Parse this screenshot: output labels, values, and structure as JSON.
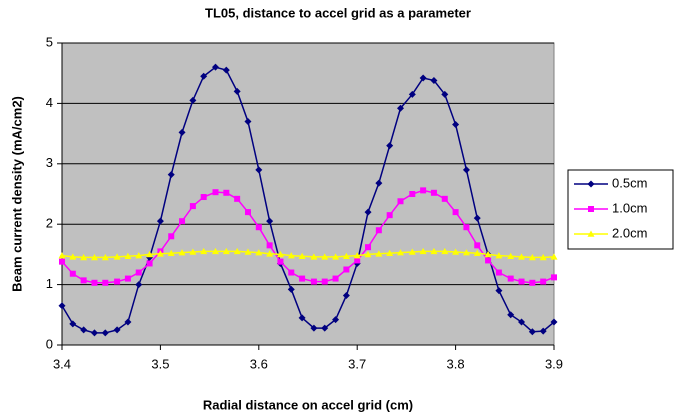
{
  "chart_data": {
    "type": "line",
    "title": "TL05, distance to accel grid as a parameter",
    "x_label": "Radial distance on accel grid (cm)",
    "y_label": "Beam current density (mA/cm2)",
    "x": [
      3.4,
      3.411,
      3.422,
      3.433,
      3.444,
      3.456,
      3.467,
      3.478,
      3.489,
      3.5,
      3.511,
      3.522,
      3.533,
      3.544,
      3.556,
      3.567,
      3.578,
      3.589,
      3.6,
      3.611,
      3.622,
      3.633,
      3.644,
      3.656,
      3.667,
      3.678,
      3.689,
      3.7,
      3.711,
      3.722,
      3.733,
      3.744,
      3.756,
      3.767,
      3.778,
      3.789,
      3.8,
      3.811,
      3.822,
      3.833,
      3.844,
      3.856,
      3.867,
      3.878,
      3.889,
      3.9
    ],
    "series": [
      {
        "name": "0.5cm",
        "color": "#000080",
        "marker": "diamond",
        "values": [
          0.65,
          0.35,
          0.25,
          0.2,
          0.2,
          0.25,
          0.38,
          1.0,
          1.45,
          2.05,
          2.82,
          3.52,
          4.05,
          4.45,
          4.6,
          4.55,
          4.2,
          3.7,
          2.9,
          2.05,
          1.35,
          0.92,
          0.45,
          0.28,
          0.28,
          0.42,
          0.82,
          1.35,
          2.2,
          2.68,
          3.3,
          3.92,
          4.15,
          4.42,
          4.38,
          4.15,
          3.65,
          2.9,
          2.1,
          1.5,
          0.9,
          0.5,
          0.38,
          0.22,
          0.23,
          0.38
        ]
      },
      {
        "name": "1.0cm",
        "color": "#ff00ff",
        "marker": "square",
        "values": [
          1.38,
          1.18,
          1.07,
          1.03,
          1.03,
          1.05,
          1.1,
          1.2,
          1.35,
          1.55,
          1.8,
          2.05,
          2.3,
          2.45,
          2.53,
          2.52,
          2.42,
          2.2,
          1.95,
          1.65,
          1.38,
          1.2,
          1.1,
          1.05,
          1.05,
          1.1,
          1.25,
          1.4,
          1.62,
          1.9,
          2.15,
          2.38,
          2.5,
          2.56,
          2.52,
          2.42,
          2.2,
          1.95,
          1.65,
          1.4,
          1.2,
          1.1,
          1.05,
          1.03,
          1.05,
          1.12
        ]
      },
      {
        "name": "2.0cm",
        "color": "#ffff00",
        "marker": "triangle",
        "values": [
          1.48,
          1.46,
          1.45,
          1.45,
          1.45,
          1.46,
          1.47,
          1.48,
          1.5,
          1.51,
          1.52,
          1.53,
          1.54,
          1.55,
          1.55,
          1.55,
          1.55,
          1.54,
          1.53,
          1.51,
          1.5,
          1.48,
          1.47,
          1.46,
          1.46,
          1.46,
          1.47,
          1.48,
          1.5,
          1.51,
          1.52,
          1.53,
          1.54,
          1.55,
          1.55,
          1.55,
          1.54,
          1.53,
          1.52,
          1.5,
          1.48,
          1.47,
          1.46,
          1.45,
          1.45,
          1.46
        ]
      }
    ],
    "xlim": [
      3.4,
      3.9
    ],
    "xticks": [
      3.4,
      3.5,
      3.6,
      3.7,
      3.8,
      3.9
    ],
    "ylim": [
      0,
      5
    ],
    "yticks": [
      0,
      1,
      2,
      3,
      4,
      5
    ],
    "grid": true,
    "plot_background": "#c0c0c0",
    "legend": "right"
  }
}
